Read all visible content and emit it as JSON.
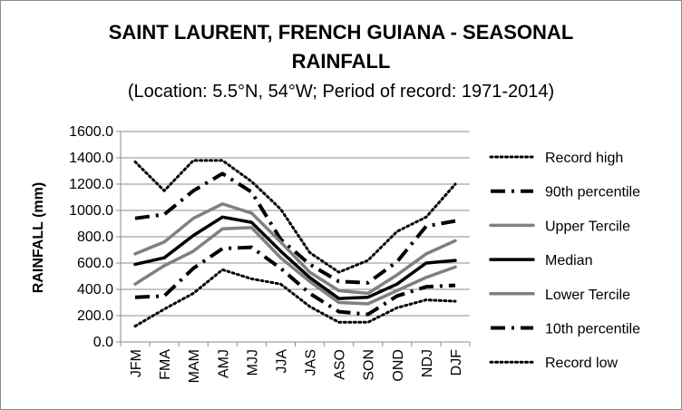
{
  "chart_data": {
    "type": "line",
    "title_line1": "SAINT LAURENT, FRENCH GUIANA - SEASONAL",
    "title_line2": "RAINFALL",
    "subtitle": "(Location: 5.5°N, 54°W; Period of record: 1971-2014)",
    "xlabel": "",
    "ylabel": "RAINFALL (mm)",
    "ylim": [
      0,
      1600
    ],
    "yticks": [
      "0.0",
      "200.0",
      "400.0",
      "600.0",
      "800.0",
      "1000.0",
      "1200.0",
      "1400.0",
      "1600.0"
    ],
    "grid": true,
    "legend_position": "right",
    "categories": [
      "JFM",
      "FMA",
      "MAM",
      "AMJ",
      "MJJ",
      "JJA",
      "JAS",
      "ASO",
      "SON",
      "OND",
      "NDJ",
      "DJF"
    ],
    "series": [
      {
        "name": "Record high",
        "style": "dotted",
        "color": "#000000",
        "values": [
          1370,
          1150,
          1380,
          1380,
          1220,
          1010,
          680,
          530,
          620,
          840,
          950,
          1200
        ]
      },
      {
        "name": "90th percentile",
        "style": "dashdot",
        "color": "#000000",
        "values": [
          940,
          970,
          1150,
          1280,
          1140,
          780,
          590,
          460,
          450,
          610,
          880,
          920
        ]
      },
      {
        "name": "Upper Tercile",
        "style": "solid",
        "color": "#808080",
        "values": [
          670,
          760,
          940,
          1050,
          980,
          760,
          530,
          390,
          370,
          510,
          670,
          770
        ]
      },
      {
        "name": "Median",
        "style": "solid",
        "color": "#000000",
        "values": [
          590,
          640,
          810,
          950,
          910,
          690,
          490,
          330,
          340,
          440,
          600,
          620
        ]
      },
      {
        "name": "Lower Tercile",
        "style": "solid",
        "color": "#808080",
        "values": [
          440,
          580,
          690,
          860,
          870,
          640,
          460,
          300,
          290,
          390,
          490,
          570
        ]
      },
      {
        "name": "10th percentile",
        "style": "dashdot",
        "color": "#000000",
        "values": [
          340,
          350,
          560,
          710,
          720,
          560,
          370,
          230,
          210,
          350,
          420,
          430
        ]
      },
      {
        "name": "Record low",
        "style": "dotted",
        "color": "#000000",
        "values": [
          120,
          250,
          370,
          550,
          480,
          440,
          270,
          150,
          150,
          260,
          320,
          310
        ]
      }
    ]
  }
}
